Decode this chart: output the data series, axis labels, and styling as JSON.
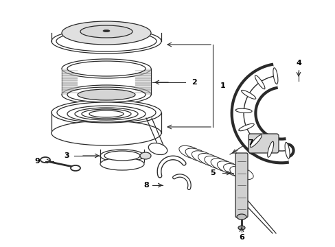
{
  "bg_color": "#ffffff",
  "line_color": "#2a2a2a",
  "label_color": "#000000",
  "figsize": [
    4.89,
    3.6
  ],
  "dpi": 100,
  "xlim": [
    0,
    489
  ],
  "ylim": [
    0,
    360
  ]
}
